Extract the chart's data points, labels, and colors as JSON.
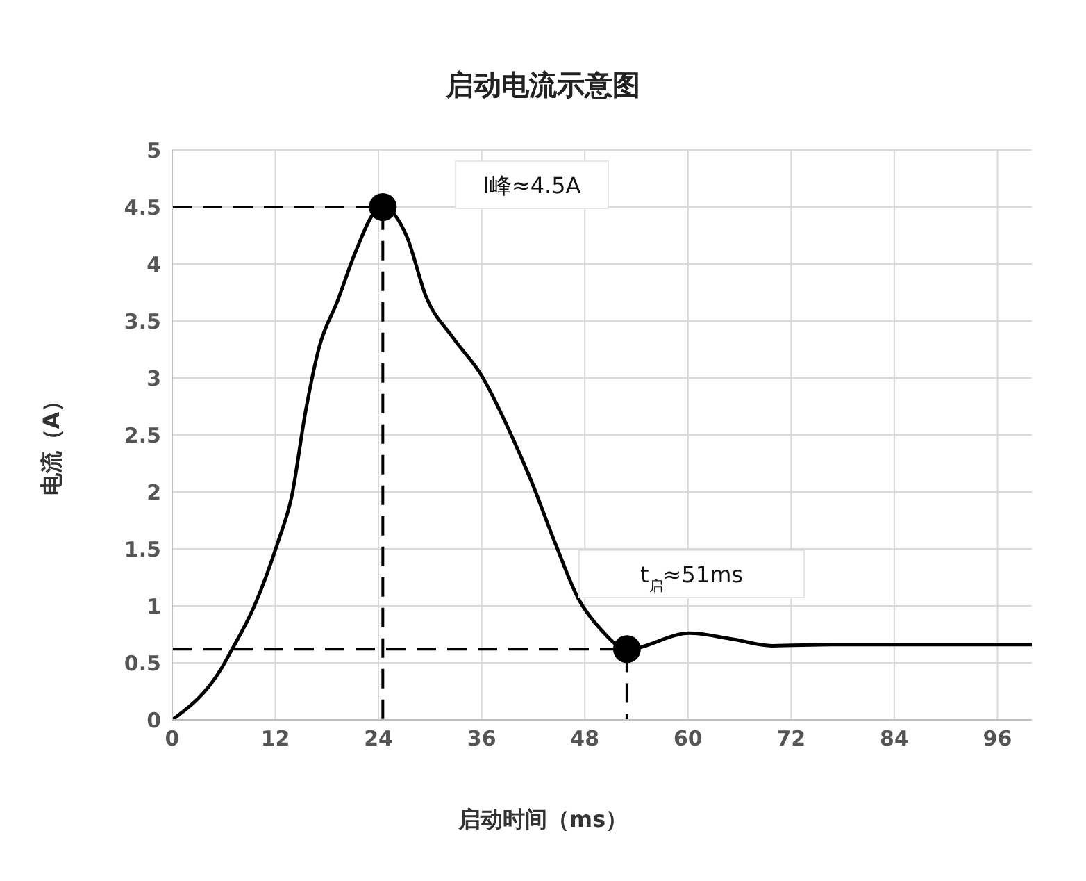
{
  "chart_data": {
    "type": "line",
    "title": "启动电流示意图",
    "xlabel": "启动时间（ms）",
    "ylabel": "电流（A）",
    "xlim": [
      0,
      100
    ],
    "xticks": [
      0,
      12,
      24,
      36,
      48,
      60,
      72,
      84,
      96
    ],
    "ylim": [
      0,
      5
    ],
    "yticks": [
      0,
      {
        "value": 0.5,
        "label": "0.5"
      },
      1,
      {
        "value": 1.5,
        "label": "1.5"
      },
      2,
      {
        "value": 2.5,
        "label": "2.5"
      },
      3,
      {
        "value": 3.5,
        "label": "3.5"
      },
      4,
      {
        "value": 4.5,
        "label": "4.5"
      },
      5
    ],
    "grid": true,
    "line_style": "solid",
    "marker": "none",
    "series": [
      {
        "color": "#000000",
        "x": [
          0,
          5.8,
          6.9,
          9.5,
          12.3,
          13.9,
          15.5,
          17.1,
          19.2,
          21.4,
          23.5,
          24.5,
          27.3,
          29.5,
          32.7,
          36,
          39.2,
          41.8,
          44.5,
          47.2,
          49.9,
          52.9,
          60.2,
          65,
          69.8,
          76.8,
          88,
          100
        ],
        "values": [
          0,
          0.46,
          0.61,
          0.99,
          1.56,
          1.96,
          2.7,
          3.27,
          3.67,
          4.12,
          4.45,
          4.5,
          4.24,
          3.72,
          3.35,
          3.02,
          2.54,
          2.09,
          1.56,
          1.07,
          0.79,
          0.62,
          0.76,
          0.71,
          0.65,
          0.66,
          0.66,
          0.66
        ]
      },
      {
        "color": "#000000",
        "line_style": "dashed",
        "x": [
          0,
          24.5,
          24.5
        ],
        "values": [
          4.5,
          4.5,
          0
        ]
      },
      {
        "color": "#000000",
        "line_style": "dashed",
        "x": [
          0,
          52.9,
          52.9
        ],
        "values": [
          0.62,
          0.62,
          0
        ]
      },
      {
        "type": "scatter",
        "color": "#000000",
        "marker": "circle",
        "x": [
          24.5,
          52.9
        ],
        "values": [
          4.5,
          0.62
        ]
      }
    ],
    "annotations": [
      "I峰≈4.5A",
      "t$_{启}$≈51ms"
    ]
  }
}
